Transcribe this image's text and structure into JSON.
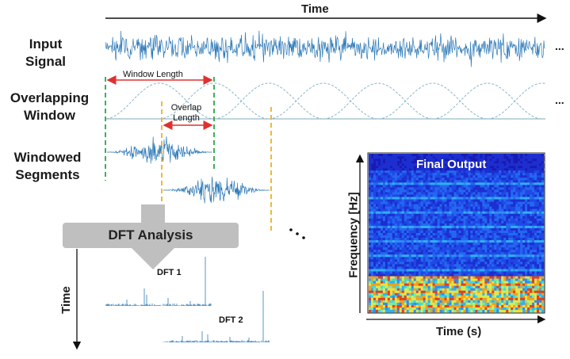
{
  "labels": {
    "time_top": "Time",
    "input_signal": "Input Signal",
    "overlapping_window": "Overlapping Window",
    "windowed_segments": "Windowed Segments",
    "window_length": "Window Length",
    "overlap_length": "Overlap Length",
    "dft_analysis": "DFT Analysis",
    "dft1": "DFT 1",
    "dft2": "DFT 2",
    "time_vertical": "Time",
    "final_output": "Final Output",
    "frequency_axis": "Frequency [Hz]",
    "time_s": "Time (s)",
    "ellipsis": "..."
  },
  "colors": {
    "signal": "#2e7ab8",
    "window_curve": "#8ab6c9",
    "red_arrow": "#e03030",
    "green_dash": "#2aa84a",
    "orange_dash": "#f0b020",
    "dft_box": "#bfbfbf",
    "spectrogram_bg": "#1a1ab0"
  }
}
